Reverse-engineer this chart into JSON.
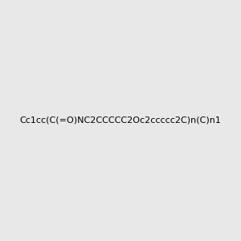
{
  "smiles": "Cc1cc(C(=O)NC2CCCCC2Oc2ccccc2C)n(C)n1",
  "image_size": 300,
  "background_color": "#e8e8e8",
  "title": ""
}
